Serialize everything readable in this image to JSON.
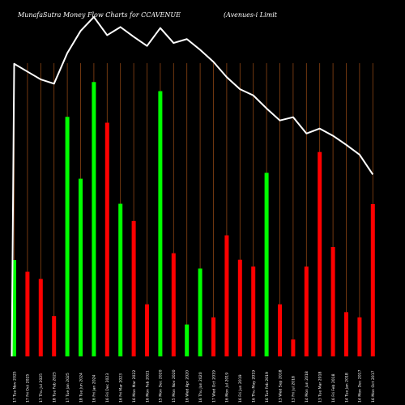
{
  "chart_data": {
    "type": "bar",
    "title": "MunafaSutra  Money Flow  Charts for CCAVENUE",
    "subtitle": "(Avenues-i   Limit",
    "colors": {
      "background": "#000000",
      "up": "#00ff00",
      "down": "#ff0000",
      "line": "#ffffff",
      "gridline": "#8b4513",
      "text": "#ffffff"
    },
    "ylim": [
      0,
      100
    ],
    "categories": [
      "17 Tue Nov 2025",
      "17 Fri Oct 2025",
      "17 Thu Jul 2025",
      "18 Tue Feb 2025",
      "17 Tue Jan 2025",
      "18 Tue Jun 2024",
      "16 Fri Jan 2024",
      "16 Fri Dec 2023",
      "16 Fri Mar 2023",
      "16 Mon Mar 2022",
      "16 Mon Feb 2021",
      "15 Mon Dec 2020",
      "15 Mon Nov 2020",
      "16 Wed Apr 2020",
      "16 Thu Jan 2020",
      "17 Wed Oct 2019",
      "16 Mon Jul 2019",
      "16 Fri Jun 2019",
      "16 Thu May 2019",
      "16 Tue Feb 2019",
      "13 Wed Sep 2018",
      "13 Fri Jul 2018",
      "14 Mon Jun 2018",
      "13 Tue Mar 2018",
      "16 Fri Feb 2018",
      "14 Tue Jan 2018",
      "14 Mon Dec 2017",
      "16 Mon Oct 2017"
    ],
    "series": [
      {
        "colors": [
          "up",
          "down",
          "down",
          "down",
          "up",
          "up",
          "up",
          "down",
          "up",
          "down",
          "down",
          "up",
          "down",
          "up",
          "up",
          "down",
          "down",
          "down",
          "down",
          "up",
          "down",
          "down",
          "down",
          "down",
          "down",
          "down",
          "down",
          "down"
        ],
        "values": [
          29.6,
          26.0,
          23.8,
          12.4,
          73.6,
          54.6,
          84.3,
          71.8,
          46.9,
          41.6,
          16.0,
          81.5,
          31.7,
          9.8,
          27.0,
          12.0,
          37.2,
          29.7,
          27.6,
          56.4,
          16.0,
          5.2,
          27.6,
          62.8,
          33.6,
          13.6,
          12.0,
          46.8
        ]
      },
      {
        "type": "line",
        "values": [
          89.9,
          87.5,
          85.1,
          83.8,
          93.2,
          100.0,
          104.3,
          98.7,
          101.2,
          98.2,
          95.4,
          100.9,
          96.3,
          97.5,
          94.2,
          90.5,
          85.8,
          82.1,
          80.2,
          76.2,
          72.5,
          73.5,
          68.5,
          70.0,
          67.8,
          65.0,
          62.0,
          55.9
        ]
      }
    ]
  }
}
